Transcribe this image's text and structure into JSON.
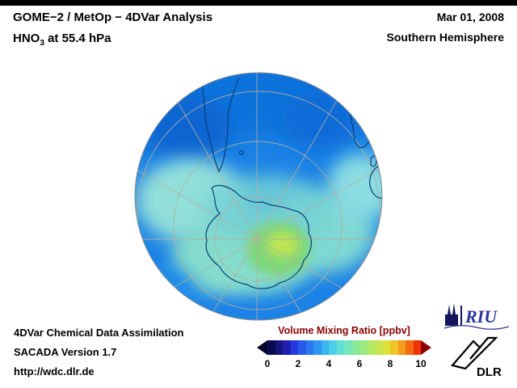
{
  "header": {
    "title_line1": "GOME−2 / MetOp − 4DVar Analysis",
    "species": "HNO",
    "species_sub": "3",
    "level": " at 55.4 hPa",
    "date": "Mar 01, 2008",
    "region": "Southern Hemisphere"
  },
  "footer": {
    "line1": "4DVar Chemical Data Assimilation",
    "line2": "SACADA Version 1.7",
    "line3": "http://wdc.dlr.de"
  },
  "colorbar": {
    "title": "Volume Mixing Ratio [ppbv]",
    "title_color": "#8b0000",
    "min": 0,
    "max": 10,
    "ticks": [
      "0",
      "2",
      "4",
      "6",
      "8",
      "10"
    ],
    "left_arrow_color": "#05052e",
    "right_arrow_color": "#8c0404",
    "segment_colors": [
      "#0a0a50",
      "#16167e",
      "#2020b0",
      "#2438dc",
      "#2858ea",
      "#2a78f0",
      "#2c96f2",
      "#38b4f0",
      "#4cd0e8",
      "#60e0d4",
      "#74e6b8",
      "#88e89c",
      "#9ce882",
      "#b2e868",
      "#c8e650",
      "#e0e03a",
      "#f0c428",
      "#f49a1c",
      "#f56a10",
      "#ee3408"
    ]
  },
  "logos": {
    "riu_text": "RIU",
    "dlr_text": "DLR"
  }
}
